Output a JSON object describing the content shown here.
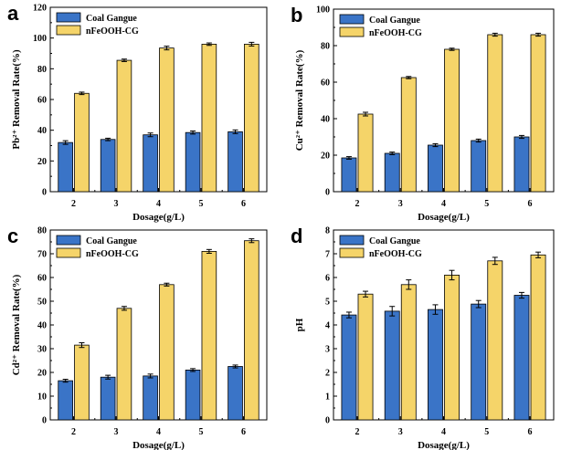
{
  "chart_data": [
    {
      "panel": "a",
      "type": "bar",
      "categories": [
        "2",
        "3",
        "4",
        "5",
        "6"
      ],
      "series": [
        {
          "name": "Coal Gangue",
          "color": "#3a74c7",
          "values": [
            32,
            34,
            37,
            38.5,
            39
          ],
          "errors": [
            1.2,
            0.8,
            1.2,
            1.0,
            1.2
          ]
        },
        {
          "name": "nFeOOH-CG",
          "color": "#f5d469",
          "values": [
            64,
            85.5,
            93.5,
            96,
            96
          ],
          "errors": [
            0.8,
            0.8,
            1.2,
            0.8,
            1.2
          ]
        }
      ],
      "xlabel": "Dosage(g/L)",
      "ylabel": "Pb²⁺ Removal Rate(%)",
      "ylim": [
        0,
        120
      ],
      "yticks": [
        0,
        20,
        40,
        60,
        80,
        100,
        120
      ]
    },
    {
      "panel": "b",
      "type": "bar",
      "categories": [
        "2",
        "3",
        "4",
        "5",
        "6"
      ],
      "series": [
        {
          "name": "Coal Gangue",
          "color": "#3a74c7",
          "values": [
            18.5,
            21,
            25.5,
            28,
            30
          ],
          "errors": [
            0.7,
            0.7,
            0.8,
            0.8,
            0.8
          ]
        },
        {
          "name": "nFeOOH-CG",
          "color": "#f5d469",
          "values": [
            42.5,
            62.5,
            78,
            86,
            86
          ],
          "errors": [
            1.0,
            0.6,
            0.6,
            0.8,
            0.8
          ]
        }
      ],
      "xlabel": "Dosage(g/L)",
      "ylabel": "Cu²⁺ Removal Rate(%)",
      "ylim": [
        0,
        100
      ],
      "yticks": [
        0,
        20,
        40,
        60,
        80,
        100
      ]
    },
    {
      "panel": "c",
      "type": "bar",
      "categories": [
        "2",
        "3",
        "4",
        "5",
        "6"
      ],
      "series": [
        {
          "name": "Coal Gangue",
          "color": "#3a74c7",
          "values": [
            16.5,
            18,
            18.5,
            21,
            22.5
          ],
          "errors": [
            0.6,
            0.8,
            0.8,
            0.6,
            0.6
          ]
        },
        {
          "name": "nFeOOH-CG",
          "color": "#f5d469",
          "values": [
            31.5,
            47,
            57,
            71,
            75.5
          ],
          "errors": [
            1.0,
            0.8,
            0.6,
            0.8,
            0.8
          ]
        }
      ],
      "xlabel": "Dosage(g/L)",
      "ylabel": "Cd²⁺ Removal Rate(%)",
      "ylim": [
        0,
        80
      ],
      "yticks": [
        0,
        10,
        20,
        30,
        40,
        50,
        60,
        70,
        80
      ]
    },
    {
      "panel": "d",
      "type": "bar",
      "categories": [
        "2",
        "3",
        "4",
        "5",
        "6"
      ],
      "series": [
        {
          "name": "Coal Gangue",
          "color": "#3a74c7",
          "values": [
            4.42,
            4.58,
            4.65,
            4.88,
            5.25
          ],
          "errors": [
            0.12,
            0.2,
            0.2,
            0.15,
            0.12
          ]
        },
        {
          "name": "nFeOOH-CG",
          "color": "#f5d469",
          "values": [
            5.3,
            5.7,
            6.1,
            6.7,
            6.95
          ],
          "errors": [
            0.12,
            0.2,
            0.2,
            0.15,
            0.12
          ]
        }
      ],
      "xlabel": "Dosage(g/L)",
      "ylabel": "pH",
      "ylim": [
        0,
        8
      ],
      "yticks": [
        0,
        1,
        2,
        3,
        4,
        5,
        6,
        7,
        8
      ]
    }
  ]
}
